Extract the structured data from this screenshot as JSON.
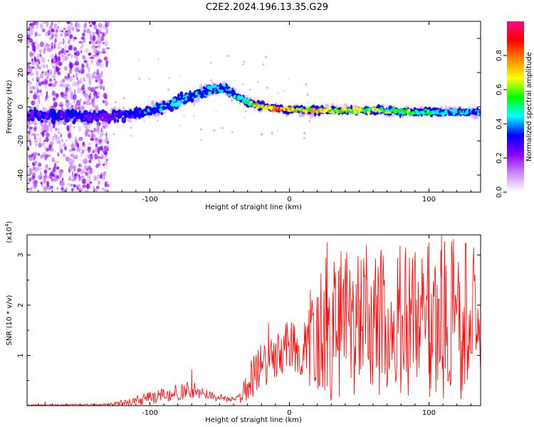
{
  "figure": {
    "title": "C2E2.2024.196.13.35.G29"
  },
  "chart_data": [
    {
      "type": "heatmap",
      "title": "C2E2.2024.196.13.35.G29",
      "xlabel": "Height of straight line (km)",
      "ylabel": "Frequency (Hz)",
      "xlim": [
        -188,
        137
      ],
      "ylim": [
        -50,
        50
      ],
      "x_ticks": [
        -100,
        0,
        100
      ],
      "x_tick_labels": [
        "-100",
        "0",
        "100"
      ],
      "y_ticks": [
        -40,
        -20,
        0,
        20,
        40
      ],
      "y_tick_labels": [
        "-40",
        "-20",
        "0",
        "20",
        "40"
      ],
      "colorbar": {
        "label": "Normalized spectral amplitude",
        "range": [
          0,
          1
        ],
        "ticks": [
          0.0,
          0.2,
          0.4,
          0.6,
          0.8
        ],
        "tick_labels": [
          "0.0",
          "0.2",
          "0.4",
          "0.6",
          "0.8"
        ],
        "colors": [
          "#ffffff",
          "#cc88ff",
          "#8800ff",
          "#0000ff",
          "#00ffff",
          "#00ff00",
          "#ffff00",
          "#ff8800",
          "#ff0000",
          "#ff0088"
        ]
      },
      "ridge_x_km": [
        -188,
        -175,
        -160,
        -145,
        -130,
        -120,
        -110,
        -100,
        -90,
        -80,
        -70,
        -60,
        -50,
        -45,
        -40,
        -30,
        -20,
        -10,
        0,
        20,
        40,
        60,
        80,
        100,
        120,
        137
      ],
      "ridge_freq_hz": [
        -5,
        -5,
        -5,
        -6,
        -6,
        -5,
        -4,
        -2,
        0,
        3,
        6,
        9,
        11,
        10,
        7,
        3,
        0,
        -1,
        -2,
        -2,
        -2,
        -2,
        -3,
        -3,
        -3,
        -3
      ],
      "ridge_amplitude": [
        0.3,
        0.35,
        0.35,
        0.3,
        0.25,
        0.3,
        0.35,
        0.4,
        0.45,
        0.45,
        0.45,
        0.5,
        0.45,
        0.4,
        0.5,
        0.6,
        0.75,
        0.85,
        0.85,
        0.75,
        0.7,
        0.65,
        0.6,
        0.55,
        0.5,
        0.45
      ],
      "scatter_region_km": [
        -188,
        -130
      ]
    },
    {
      "type": "line",
      "xlabel": "Height of straight line (km)",
      "ylabel": "SNR (10 * v/v)",
      "y_scale_label": "(x10",
      "y_scale_exponent": "4",
      "y_scale_close": ")",
      "xlim": [
        -188,
        137
      ],
      "ylim": [
        0,
        3.4
      ],
      "x_ticks": [
        -100,
        0,
        100
      ],
      "x_tick_labels": [
        "-100",
        "0",
        "100"
      ],
      "y_ticks": [
        1,
        2,
        3
      ],
      "y_tick_labels": [
        "1",
        "2",
        "3"
      ],
      "color": "#ff0000",
      "envelope_x_km": [
        -188,
        -130,
        -120,
        -100,
        -80,
        -70,
        -60,
        -40,
        -35,
        -30,
        -20,
        -10,
        0,
        10,
        15,
        20,
        30,
        40,
        60,
        80,
        100,
        120,
        137
      ],
      "envelope_mean": [
        0.01,
        0.02,
        0.06,
        0.17,
        0.28,
        0.32,
        0.22,
        0.12,
        0.15,
        0.45,
        0.8,
        1.05,
        1.25,
        1.05,
        1.35,
        1.7,
        1.7,
        1.8,
        1.75,
        1.85,
        1.85,
        1.85,
        1.75
      ],
      "envelope_spread": [
        0.01,
        0.02,
        0.06,
        0.12,
        0.15,
        0.18,
        0.1,
        0.05,
        0.1,
        0.35,
        0.45,
        0.5,
        0.45,
        0.5,
        0.9,
        1.3,
        1.4,
        1.3,
        1.35,
        1.4,
        1.45,
        1.5,
        1.4
      ],
      "peaks": [
        {
          "x": -175,
          "y": 0.08
        },
        {
          "x": -70,
          "y": 0.72
        },
        {
          "x": -15,
          "y": 1.65
        },
        {
          "x": 15,
          "y": 2.3
        },
        {
          "x": 27,
          "y": 3.25
        },
        {
          "x": 55,
          "y": 3.2
        },
        {
          "x": 100,
          "y": 3.25
        },
        {
          "x": 109,
          "y": 3.4
        },
        {
          "x": 132,
          "y": 3.15
        }
      ]
    }
  ]
}
